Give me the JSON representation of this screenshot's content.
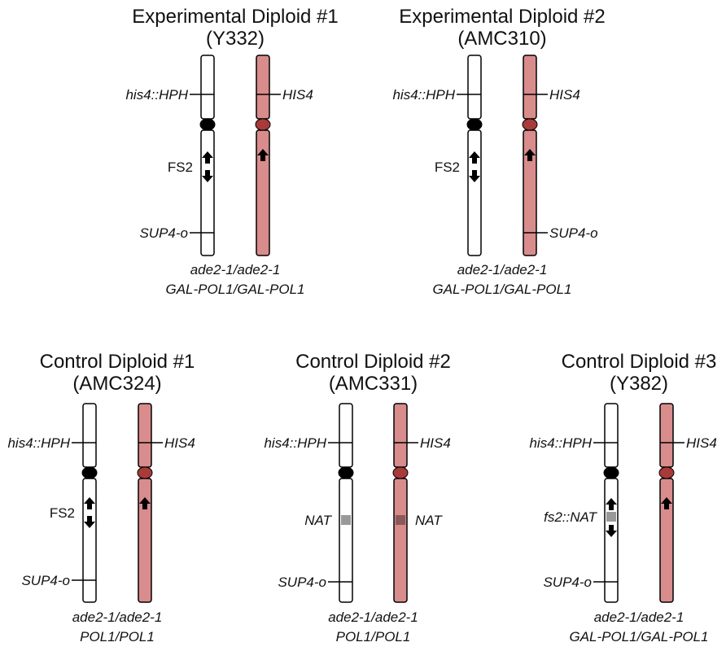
{
  "colors": {
    "wild_fill": "#d98c8c",
    "wild_centromere": "#a83a3a",
    "mutant_fill": "#ffffff",
    "centromere_black": "#000000",
    "nat_mutant": "#999999",
    "nat_wild": "#8a5a5a"
  },
  "diploids": [
    {
      "title": "Experimental Diploid #1",
      "strain": "(Y332)",
      "left_labels": [
        "his4::HPH",
        "FS2",
        "SUP4-o"
      ],
      "right_labels": [
        "HIS4"
      ],
      "genotype": [
        "ade2-1/ade2-1",
        "GAL-POL1/GAL-POL1"
      ]
    },
    {
      "title": "Experimental Diploid #2",
      "strain": "(AMC310)",
      "left_labels": [
        "his4::HPH",
        "FS2"
      ],
      "right_labels": [
        "HIS4",
        "SUP4-o"
      ],
      "genotype": [
        "ade2-1/ade2-1",
        "GAL-POL1/GAL-POL1"
      ]
    },
    {
      "title": "Control Diploid #1",
      "strain": "(AMC324)",
      "left_labels": [
        "his4::HPH",
        "FS2",
        "SUP4-o"
      ],
      "right_labels": [
        "HIS4"
      ],
      "genotype": [
        "ade2-1/ade2-1",
        "POL1/POL1"
      ]
    },
    {
      "title": "Control Diploid #2",
      "strain": "(AMC331)",
      "left_labels": [
        "his4::HPH",
        "NAT",
        "SUP4-o"
      ],
      "right_labels": [
        "HIS4",
        "NAT"
      ],
      "genotype": [
        "ade2-1/ade2-1",
        "POL1/POL1"
      ]
    },
    {
      "title": "Control Diploid #3",
      "strain": "(Y382)",
      "left_labels": [
        "his4::HPH",
        "fs2::NAT",
        "SUP4-o"
      ],
      "right_labels": [
        "HIS4"
      ],
      "genotype": [
        "ade2-1/ade2-1",
        "GAL-POL1/GAL-POL1"
      ]
    }
  ]
}
